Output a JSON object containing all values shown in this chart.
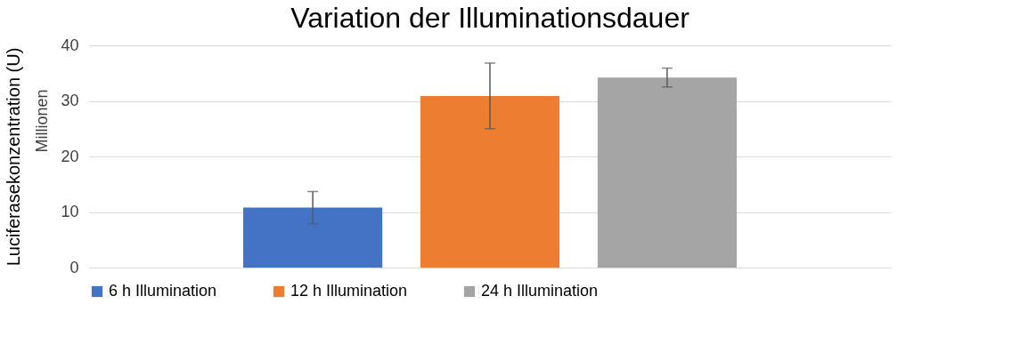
{
  "chart_data": {
    "type": "bar",
    "title": "Variation der Illuminationsdauer",
    "ylabel": "Luciferasekonzentration (U)",
    "annotations": [
      "Millionen"
    ],
    "categories": [
      null
    ],
    "series": [
      {
        "name": "6 h Illumination",
        "color": "#4472c4",
        "values": [
          10.8
        ],
        "errors": [
          2.9
        ]
      },
      {
        "name": "12 h Illumination",
        "color": "#ed7d31",
        "values": [
          30.9
        ],
        "errors": [
          5.9
        ]
      },
      {
        "name": "24 h Illumination",
        "color": "#a5a5a5",
        "values": [
          34.2
        ],
        "errors": [
          1.7
        ]
      }
    ],
    "ylim": [
      0,
      40
    ],
    "yticks": [
      0,
      10,
      20,
      30,
      40
    ],
    "grid": "y",
    "legend": "bottom",
    "tick_labels": "y"
  }
}
